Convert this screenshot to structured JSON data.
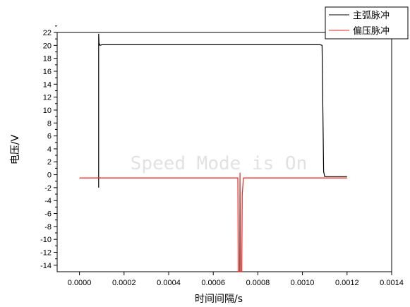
{
  "chart_data": {
    "type": "line",
    "xlabel": "时间间隔/s",
    "ylabel": "电压/V",
    "xlim": [
      -0.0001,
      0.0014
    ],
    "ylim": [
      -15,
      22
    ],
    "xticks": [
      "0.0000",
      "0.0002",
      "0.0004",
      "0.0006",
      "0.0008",
      "0.0010",
      "0.0012",
      "0.0014"
    ],
    "yticks": [
      "-14",
      "-12",
      "-10",
      "-8",
      "-6",
      "-4",
      "-2",
      "0",
      "2",
      "4",
      "6",
      "8",
      "10",
      "12",
      "14",
      "16",
      "18",
      "20",
      "22"
    ],
    "legend_position": "top-right, outside plot",
    "watermark": "Speed Mode is On",
    "series": [
      {
        "name": "主弧脉冲",
        "color": "#000000",
        "x": [
          8.6e-05,
          8.6e-05,
          8.8e-05,
          9e-05,
          9.3e-05,
          0.0001,
          0.0005,
          0.00108,
          0.001088,
          0.001095,
          0.0011,
          0.001105,
          0.0012
        ],
        "y": [
          -2,
          21.8,
          20.0,
          20.2,
          20.0,
          20.1,
          20.1,
          20.1,
          20.0,
          0.5,
          -0.3,
          -0.3,
          -0.3
        ]
      },
      {
        "name": "偏压脉冲",
        "color": "#e8251f",
        "x": [
          0.0,
          0.0007,
          0.00071,
          0.000712,
          0.000718,
          0.00072,
          0.000722,
          0.000728,
          0.00073,
          0.000735,
          0.00074,
          0.0012
        ],
        "y": [
          -0.5,
          -0.5,
          -0.5,
          -15,
          -15,
          0.3,
          -15,
          -15,
          -3,
          -0.5,
          -0.5,
          -0.5
        ]
      }
    ]
  }
}
